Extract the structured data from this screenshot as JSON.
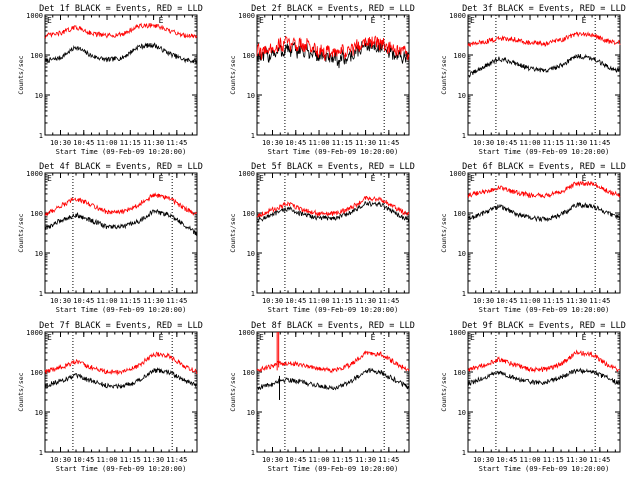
{
  "chart_data": {
    "type": "line",
    "layout": "3x3 grid",
    "xlabel": "Start Time (09-Feb-09 10:20:00)",
    "ylabel": "Counts/sec",
    "y_scale": "log",
    "ylim": [
      1,
      1000
    ],
    "xlim_minutes": [
      0,
      98
    ],
    "x_tick_labels": [
      "10:30",
      "10:45",
      "11:00",
      "11:15",
      "11:30",
      "11:45"
    ],
    "x_tick_minutes": [
      10,
      25,
      40,
      55,
      70,
      85
    ],
    "y_tick_labels": [
      "1",
      "10",
      "100",
      "1000"
    ],
    "y_tick_values": [
      1,
      10,
      100,
      1000
    ],
    "markers": [
      {
        "label": "E",
        "minute": 0
      },
      {
        "label": "E",
        "minute": 72
      }
    ],
    "colors": {
      "events": "#000000",
      "lld": "#ff0000"
    },
    "panels": [
      {
        "title": "Det 1f BLACK = Events, RED = LLD",
        "dotted_minutes": [],
        "series": [
          {
            "name": "Events",
            "x": [
              0,
              10,
              20,
              30,
              40,
              50,
              60,
              70,
              80,
              90,
              98
            ],
            "y": [
              70,
              85,
              160,
              95,
              75,
              85,
              160,
              180,
              110,
              75,
              70
            ]
          },
          {
            "name": "LLD",
            "x": [
              0,
              10,
              20,
              30,
              40,
              50,
              60,
              70,
              80,
              90,
              98
            ],
            "y": [
              300,
              350,
              500,
              350,
              300,
              330,
              520,
              560,
              400,
              310,
              300
            ]
          }
        ]
      },
      {
        "title": "Det 2f BLACK = Events, RED = LLD",
        "dotted_minutes": [
          18,
          82
        ],
        "series": [
          {
            "name": "Events",
            "x": [
              0,
              10,
              20,
              30,
              40,
              50,
              60,
              70,
              80,
              90,
              98
            ],
            "y": [
              85,
              110,
              140,
              130,
              95,
              75,
              90,
              180,
              150,
              95,
              85
            ]
          },
          {
            "name": "LLD",
            "x": [
              0,
              10,
              20,
              30,
              40,
              50,
              60,
              70,
              80,
              90,
              98
            ],
            "y": [
              110,
              150,
              200,
              180,
              130,
              105,
              130,
              230,
              190,
              120,
              110
            ]
          }
        ]
      },
      {
        "title": "Det 3f BLACK = Events, RED = LLD",
        "dotted_minutes": [
          18,
          82
        ],
        "series": [
          {
            "name": "Events",
            "x": [
              0,
              10,
              20,
              30,
              40,
              50,
              60,
              70,
              80,
              90,
              98
            ],
            "y": [
              30,
              50,
              80,
              65,
              45,
              40,
              55,
              95,
              85,
              50,
              40
            ]
          },
          {
            "name": "LLD",
            "x": [
              0,
              10,
              20,
              30,
              40,
              50,
              60,
              70,
              80,
              90,
              98
            ],
            "y": [
              180,
              210,
              260,
              250,
              200,
              190,
              240,
              330,
              320,
              220,
              200
            ]
          }
        ]
      },
      {
        "title": "Det 4f BLACK = Events, RED = LLD",
        "dotted_minutes": [
          18,
          82
        ],
        "series": [
          {
            "name": "Events",
            "x": [
              0,
              10,
              20,
              30,
              40,
              50,
              60,
              70,
              80,
              90,
              98
            ],
            "y": [
              40,
              65,
              90,
              65,
              45,
              45,
              60,
              110,
              90,
              50,
              30
            ]
          },
          {
            "name": "LLD",
            "x": [
              0,
              10,
              20,
              30,
              40,
              50,
              60,
              70,
              80,
              90,
              98
            ],
            "y": [
              90,
              150,
              230,
              160,
              105,
              105,
              160,
              280,
              240,
              130,
              90
            ]
          }
        ]
      },
      {
        "title": "Det 5f BLACK = Events, RED = LLD",
        "dotted_minutes": [
          18,
          82
        ],
        "series": [
          {
            "name": "Events",
            "x": [
              0,
              10,
              20,
              30,
              40,
              50,
              60,
              70,
              80,
              90,
              98
            ],
            "y": [
              65,
              90,
              130,
              90,
              75,
              75,
              100,
              170,
              160,
              95,
              65
            ]
          },
          {
            "name": "LLD",
            "x": [
              0,
              10,
              20,
              30,
              40,
              50,
              60,
              70,
              80,
              90,
              98
            ],
            "y": [
              85,
              120,
              170,
              120,
              95,
              95,
              130,
              230,
              220,
              130,
              90
            ]
          }
        ]
      },
      {
        "title": "Det 6f BLACK = Events, RED = LLD",
        "dotted_minutes": [
          18,
          82
        ],
        "series": [
          {
            "name": "Events",
            "x": [
              0,
              10,
              20,
              30,
              40,
              50,
              60,
              70,
              80,
              90,
              98
            ],
            "y": [
              70,
              100,
              150,
              100,
              75,
              70,
              90,
              160,
              150,
              100,
              75
            ]
          },
          {
            "name": "LLD",
            "x": [
              0,
              10,
              20,
              30,
              40,
              50,
              60,
              70,
              80,
              90,
              98
            ],
            "y": [
              280,
              330,
              430,
              330,
              280,
              270,
              330,
              560,
              540,
              350,
              280
            ]
          }
        ]
      },
      {
        "title": "Det 7f BLACK = Events, RED = LLD",
        "dotted_minutes": [
          18,
          82
        ],
        "series": [
          {
            "name": "Events",
            "x": [
              0,
              10,
              20,
              30,
              40,
              50,
              60,
              70,
              80,
              90,
              98
            ],
            "y": [
              45,
              60,
              80,
              60,
              45,
              45,
              60,
              110,
              100,
              60,
              45
            ]
          },
          {
            "name": "LLD",
            "x": [
              0,
              10,
              20,
              30,
              40,
              50,
              60,
              70,
              80,
              90,
              98
            ],
            "y": [
              100,
              130,
              180,
              130,
              100,
              100,
              140,
              280,
              250,
              140,
              100
            ]
          }
        ]
      },
      {
        "title": "Det 8f BLACK = Events, RED = LLD",
        "dotted_minutes": [
          18,
          82
        ],
        "series": [
          {
            "name": "Events",
            "x": [
              0,
              10,
              13,
              20,
              30,
              40,
              50,
              60,
              70,
              80,
              90,
              98
            ],
            "y": [
              40,
              50,
              60,
              65,
              55,
              45,
              40,
              55,
              110,
              100,
              60,
              40
            ]
          },
          {
            "name": "LLD",
            "x": [
              0,
              10,
              13,
              20,
              30,
              40,
              50,
              60,
              70,
              80,
              90,
              98
            ],
            "y": [
              110,
              140,
              160,
              170,
              150,
              120,
              110,
              150,
              300,
              280,
              160,
              110
            ]
          }
        ]
      },
      {
        "title": "Det 9f BLACK = Events, RED = LLD",
        "dotted_minutes": [
          18,
          82
        ],
        "series": [
          {
            "name": "Events",
            "x": [
              0,
              10,
              20,
              30,
              40,
              50,
              60,
              70,
              80,
              90,
              98
            ],
            "y": [
              50,
              70,
              100,
              70,
              55,
              55,
              75,
              110,
              100,
              70,
              50
            ]
          },
          {
            "name": "LLD",
            "x": [
              0,
              10,
              20,
              30,
              40,
              50,
              60,
              70,
              80,
              90,
              98
            ],
            "y": [
              110,
              150,
              210,
              150,
              115,
              115,
              160,
              300,
              280,
              150,
              110
            ]
          }
        ]
      }
    ]
  }
}
